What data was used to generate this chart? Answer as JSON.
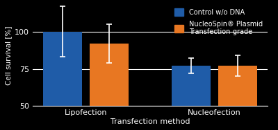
{
  "categories": [
    "Lipofection",
    "Nucleofection"
  ],
  "control_values": [
    100,
    77
  ],
  "control_errors": [
    17,
    5
  ],
  "nucleospin_values": [
    92,
    77
  ],
  "nucleospin_errors": [
    13,
    7
  ],
  "control_color": "#1F5CA8",
  "nucleospin_color": "#E87722",
  "ylabel": "Cell survival [%]",
  "xlabel": "Transfection method",
  "legend_label_1": "Control w/o DNA",
  "legend_label_2": "NucleoSpin® Plasmid\nTransfection-grade",
  "ylim": [
    50,
    118
  ],
  "yticks": [
    50,
    75,
    100
  ],
  "bar_width": 0.3,
  "background_color": "#000000",
  "plot_bg_color": "#000000",
  "text_color": "#ffffff",
  "grid_color": "#ffffff",
  "error_color": "#ffffff"
}
